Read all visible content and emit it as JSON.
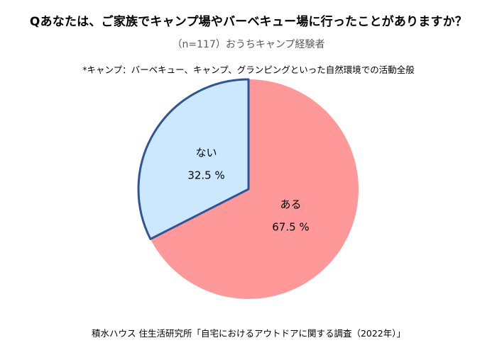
{
  "title": "Qあなたは、ご家族でキャンプ場やバーベキュー場に行ったことがありますか？",
  "subtitle": "（n=117）おうちキャンプ経験者",
  "note": "*キャンプ：バーベキュー、キャンプ、グランピングといった自然環境での活動全般",
  "source": "積水ハウス 住生活研究所「自宅におけるアウトドアに関する調査（2022年）」",
  "colors": {
    "aru_fill": "#FF9999",
    "nai_fill": "#CCE8FF",
    "nai_stroke": "#2F5597"
  },
  "chart_data": {
    "type": "pie",
    "slices": [
      {
        "label": "ある",
        "value": 67.5,
        "value_label": "67.5 %",
        "color": "#FF9999"
      },
      {
        "label": "ない",
        "value": 32.5,
        "value_label": "32.5 %",
        "color": "#CCE8FF"
      }
    ],
    "start_angle_deg": 0,
    "direction": "clockwise"
  }
}
